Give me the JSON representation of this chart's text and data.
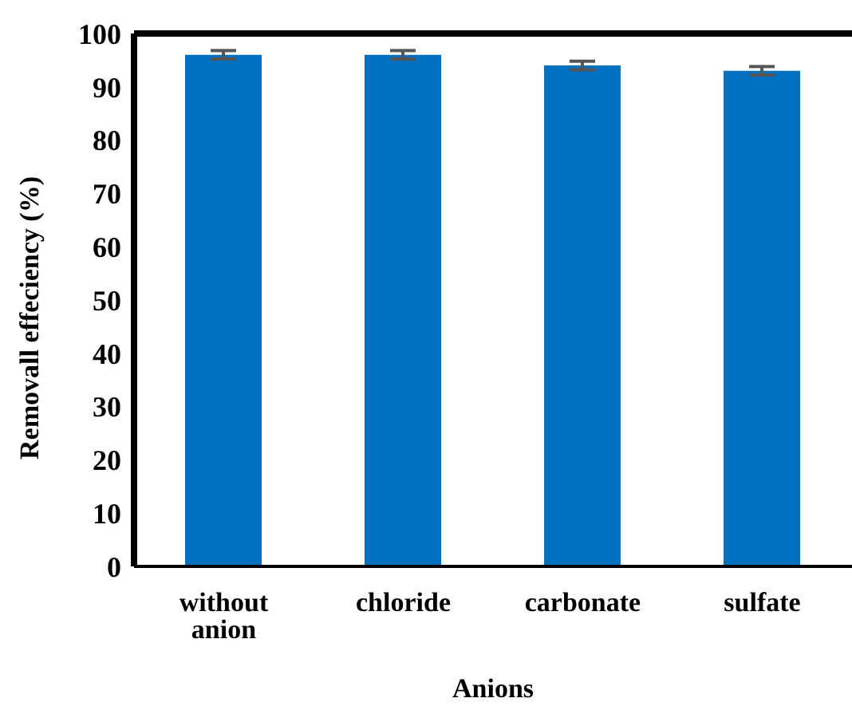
{
  "chart_data": {
    "type": "bar",
    "xlabel": "Anions",
    "ylabel": "Removall effeciency (%)",
    "categories": [
      "without anion",
      "chloride",
      "carbonate",
      "sulfate"
    ],
    "values": [
      96,
      96,
      94,
      93
    ],
    "errors": [
      0.8,
      0.8,
      0.8,
      0.8
    ],
    "color": "#0070c0",
    "ylim": [
      0,
      100
    ],
    "yticks": [
      0,
      10,
      20,
      30,
      40,
      50,
      60,
      70,
      80,
      90,
      100
    ],
    "grid": false
  }
}
